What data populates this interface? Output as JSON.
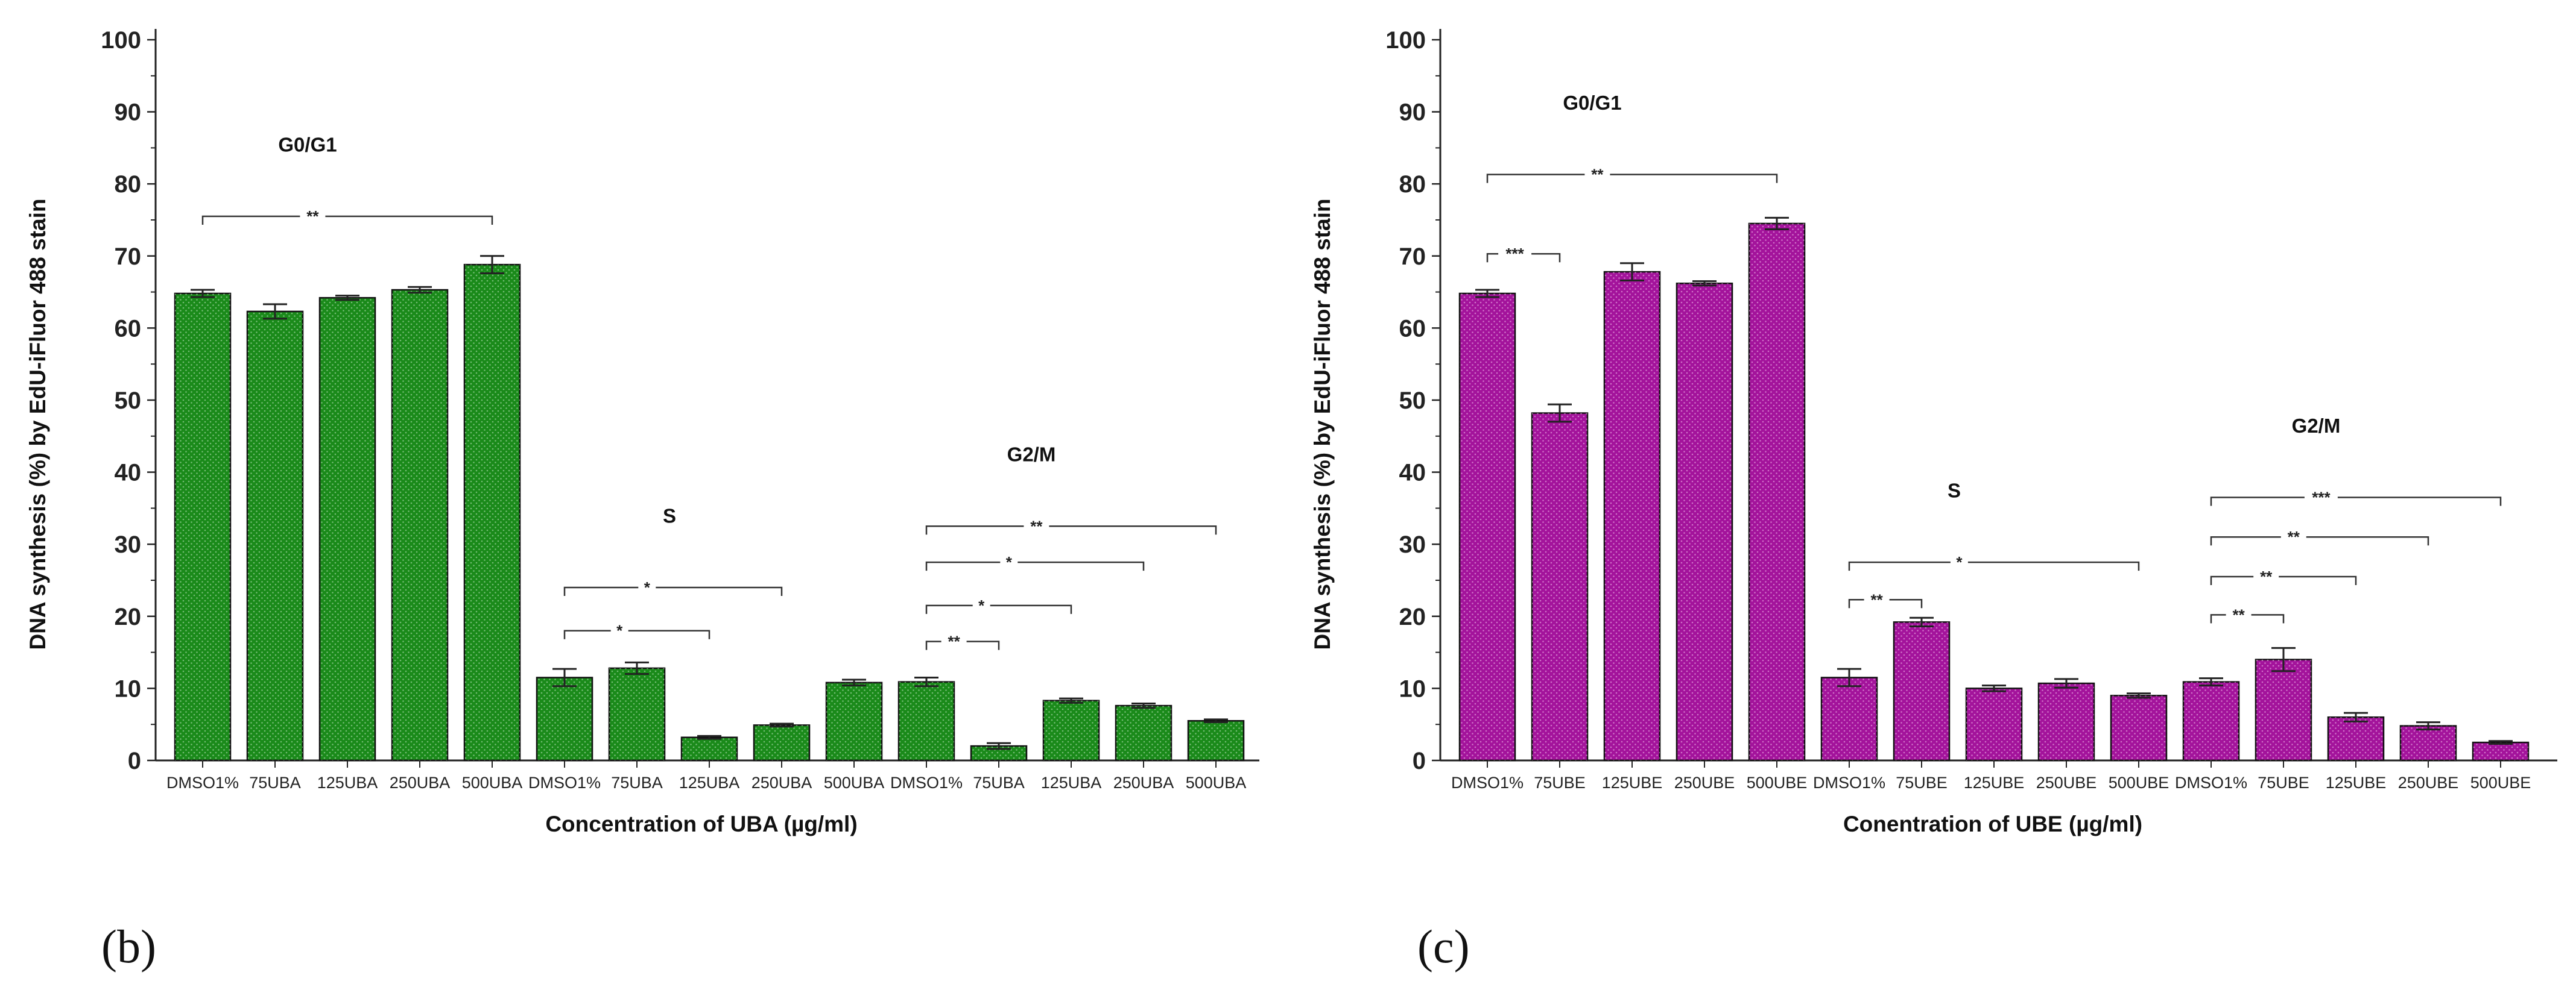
{
  "chart_data": [
    {
      "type": "bar",
      "panel_label": "(b)",
      "title": "",
      "xlabel": "Concentration of UBA (µg/ml)",
      "ylabel": "DNA synthesis (%) by EdU-iFluor 488 stain",
      "ylim": [
        0,
        100
      ],
      "yticks": [
        0,
        10,
        20,
        30,
        40,
        50,
        60,
        70,
        80,
        90,
        100
      ],
      "color": "#1a8a1a",
      "categories": [
        "DMSO1%",
        "75UBA",
        "125UBA",
        "250UBA",
        "500UBA",
        "DMSO1%",
        "75UBA",
        "125UBA",
        "250UBA",
        "500UBA",
        "DMSO1%",
        "75UBA",
        "125UBA",
        "250UBA",
        "500UBA"
      ],
      "groups": [
        {
          "name": "G0/G1",
          "values": [
            64.8,
            62.3,
            64.2,
            65.3,
            68.8
          ],
          "errors": [
            0.5,
            1.0,
            0.3,
            0.4,
            1.2
          ]
        },
        {
          "name": "S",
          "values": [
            11.5,
            12.8,
            3.2,
            4.9,
            10.8
          ],
          "errors": [
            1.2,
            0.8,
            0.2,
            0.2,
            0.4
          ]
        },
        {
          "name": "G2/M",
          "values": [
            10.9,
            2.0,
            8.3,
            7.6,
            5.5
          ],
          "errors": [
            0.6,
            0.4,
            0.3,
            0.3,
            0.2
          ]
        }
      ],
      "annotations": [
        {
          "label": "**",
          "from": 0,
          "to": 4,
          "y": 75.5
        },
        {
          "label": "*",
          "from": 5,
          "to": 8,
          "y": 24
        },
        {
          "label": "*",
          "from": 5,
          "to": 7,
          "y": 18
        },
        {
          "label": "**",
          "from": 10,
          "to": 14,
          "y": 32.5
        },
        {
          "label": "*",
          "from": 10,
          "to": 13,
          "y": 27.5
        },
        {
          "label": "*",
          "from": 10,
          "to": 12,
          "y": 21.5
        },
        {
          "label": "**",
          "from": 10,
          "to": 11,
          "y": 16.5
        }
      ]
    },
    {
      "type": "bar",
      "panel_label": "(c)",
      "title": "",
      "xlabel": "Conentration of UBE (µg/ml)",
      "ylabel": "DNA synthesis (%) by EdU-iFluor 488 stain",
      "ylim": [
        0,
        100
      ],
      "yticks": [
        0,
        10,
        20,
        30,
        40,
        50,
        60,
        70,
        80,
        90,
        100
      ],
      "color": "#a3139b",
      "categories": [
        "DMSO1%",
        "75UBE",
        "125UBE",
        "250UBE",
        "500UBE",
        "DMSO1%",
        "75UBE",
        "125UBE",
        "250UBE",
        "500UBE",
        "DMSO1%",
        "75UBE",
        "125UBE",
        "250UBE",
        "500UBE"
      ],
      "groups": [
        {
          "name": "G0/G1",
          "values": [
            64.8,
            48.2,
            67.8,
            66.2,
            74.5
          ],
          "errors": [
            0.5,
            1.2,
            1.2,
            0.3,
            0.8
          ]
        },
        {
          "name": "S",
          "values": [
            11.5,
            19.2,
            10.0,
            10.7,
            9.0
          ],
          "errors": [
            1.2,
            0.6,
            0.4,
            0.6,
            0.3
          ]
        },
        {
          "name": "G2/M",
          "values": [
            10.9,
            14.0,
            6.0,
            4.8,
            2.5
          ],
          "errors": [
            0.5,
            1.6,
            0.6,
            0.5,
            0.2
          ]
        }
      ],
      "annotations": [
        {
          "label": "**",
          "from": 0,
          "to": 4,
          "y": 81.3
        },
        {
          "label": "***",
          "from": 0,
          "to": 1,
          "y": 70.3
        },
        {
          "label": "*",
          "from": 5,
          "to": 9,
          "y": 27.5
        },
        {
          "label": "**",
          "from": 5,
          "to": 6,
          "y": 22.3
        },
        {
          "label": "***",
          "from": 10,
          "to": 14,
          "y": 36.5
        },
        {
          "label": "**",
          "from": 10,
          "to": 13,
          "y": 31
        },
        {
          "label": "**",
          "from": 10,
          "to": 12,
          "y": 25.5
        },
        {
          "label": "**",
          "from": 10,
          "to": 11,
          "y": 20.2
        }
      ]
    }
  ]
}
